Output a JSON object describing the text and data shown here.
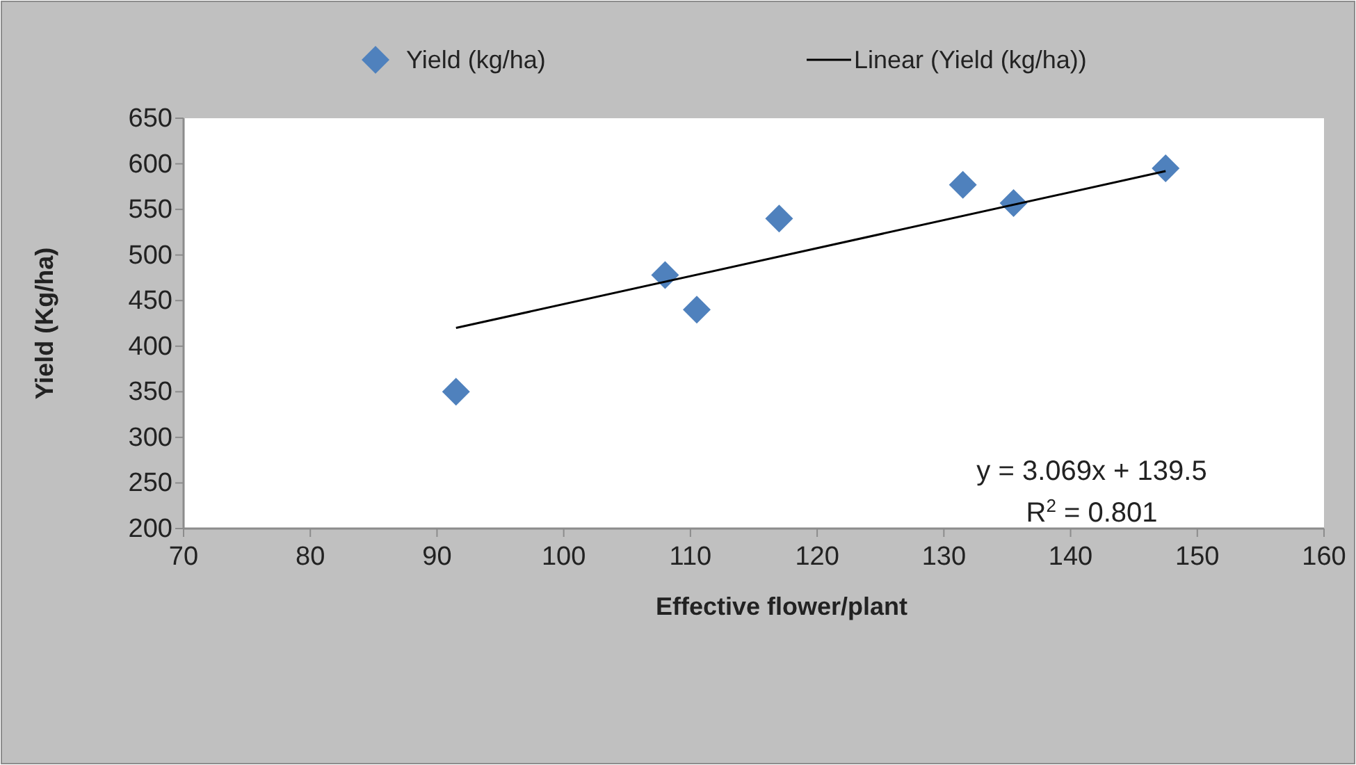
{
  "chart_data": {
    "type": "scatter",
    "xlabel": "Effective flower/plant",
    "ylabel": "Yield (Kg/ha)",
    "xlim": [
      70,
      160
    ],
    "xticks": [
      70,
      80,
      90,
      100,
      110,
      120,
      130,
      140,
      150,
      160
    ],
    "ylim": [
      200,
      650
    ],
    "yticks": [
      200,
      250,
      300,
      350,
      400,
      450,
      500,
      550,
      600,
      650
    ],
    "grid": false,
    "legend": "top",
    "marker": "diamond",
    "series": [
      {
        "name": "Yield (kg/ha)",
        "color": "#4f81bd",
        "x": [
          91.5,
          108,
          110.5,
          117,
          131.5,
          135.5,
          147.5
        ],
        "values": [
          350,
          478,
          440,
          540,
          577,
          557,
          595
        ]
      },
      {
        "name": "Linear (Yield (kg/ha))",
        "type": "line",
        "color": "#000000",
        "marker": "none",
        "line_style": "solid",
        "x": [
          91.5,
          147.5
        ],
        "values": [
          420,
          592
        ]
      }
    ],
    "annotations": [
      "y = 3.069x + 139.5",
      "R$^{2}$ = 0.801"
    ]
  }
}
